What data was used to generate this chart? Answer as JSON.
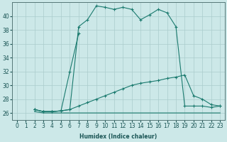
{
  "xlabel": "Humidex (Indice chaleur)",
  "bg_color": "#cce8e8",
  "line_color": "#1a7a6e",
  "grid_color": "#aacccc",
  "xlim": [
    -0.5,
    23.5
  ],
  "ylim": [
    25.0,
    42.0
  ],
  "yticks": [
    26,
    28,
    30,
    32,
    34,
    36,
    38,
    40
  ],
  "xticks": [
    0,
    1,
    2,
    3,
    4,
    5,
    6,
    7,
    8,
    9,
    10,
    11,
    12,
    13,
    14,
    15,
    16,
    17,
    18,
    19,
    20,
    21,
    22,
    23
  ],
  "series": [
    {
      "x": [
        2,
        3,
        4,
        5,
        6,
        7,
        8,
        9,
        10,
        11,
        12,
        13,
        14,
        15,
        16,
        17,
        18,
        19,
        20,
        21,
        22,
        23
      ],
      "y": [
        26.5,
        26.2,
        26.2,
        26.3,
        26.5,
        38.5,
        39.5,
        41.5,
        41.3,
        41.0,
        41.3,
        41.0,
        39.5,
        40.2,
        41.0,
        40.5,
        38.5,
        27.0,
        27.0,
        27.0,
        26.8,
        27.0
      ],
      "marker": true
    },
    {
      "x": [
        2,
        3,
        4,
        5,
        6,
        7
      ],
      "y": [
        26.5,
        26.2,
        26.2,
        26.3,
        32.0,
        37.5
      ],
      "marker": true
    },
    {
      "x": [
        2,
        3,
        4,
        5,
        6,
        7,
        8,
        9,
        10,
        11,
        12,
        13,
        14,
        15,
        16,
        17,
        18,
        19,
        20,
        21,
        22,
        23
      ],
      "y": [
        26.5,
        26.2,
        26.2,
        26.3,
        26.5,
        27.0,
        27.5,
        28.0,
        28.5,
        29.0,
        29.5,
        30.0,
        30.3,
        30.5,
        30.7,
        31.0,
        31.2,
        31.5,
        28.5,
        28.0,
        27.2,
        27.0
      ],
      "marker": true
    },
    {
      "x": [
        2,
        3,
        4,
        5,
        6,
        7,
        8,
        9,
        10,
        11,
        12,
        13,
        14,
        15,
        16,
        17,
        18,
        19,
        20,
        21,
        22,
        23
      ],
      "y": [
        26.2,
        26.0,
        26.0,
        26.0,
        26.0,
        26.0,
        26.0,
        26.0,
        26.0,
        26.0,
        26.0,
        26.0,
        26.0,
        26.0,
        26.0,
        26.0,
        26.0,
        26.0,
        26.0,
        26.0,
        26.0,
        26.0
      ],
      "marker": false
    }
  ]
}
